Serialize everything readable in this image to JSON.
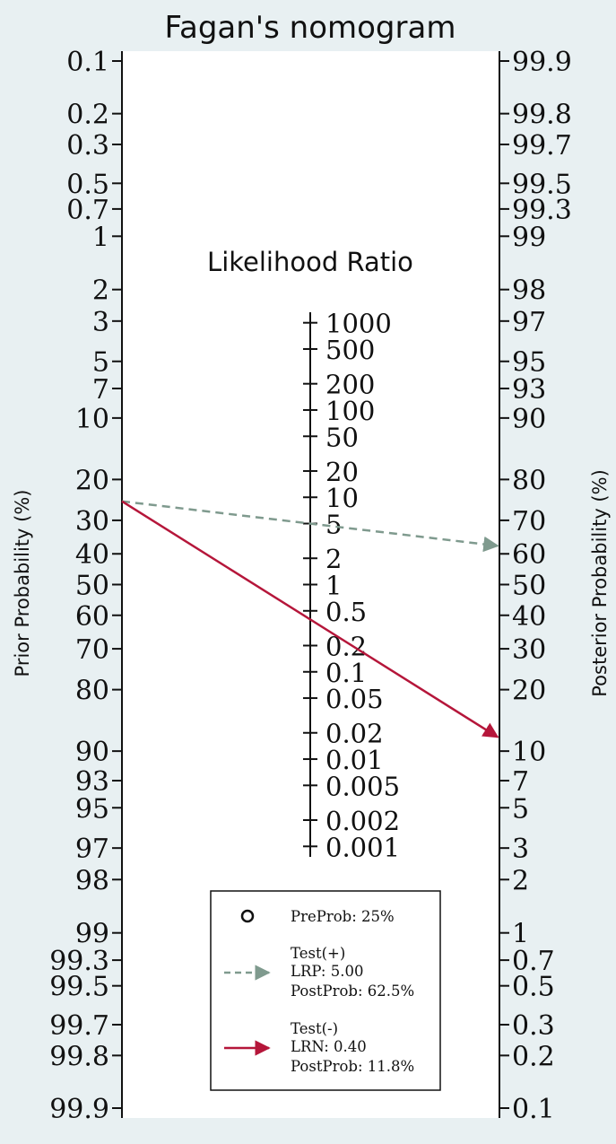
{
  "chart_data": {
    "type": "nomogram",
    "title": "Fagan's nomogram",
    "lr_title": "Likelihood Ratio",
    "left_axis": {
      "label": "Prior Probability (%)",
      "ticks": [
        "0.1",
        "0.2",
        "0.3",
        "0.5",
        "0.7",
        "1",
        "2",
        "3",
        "5",
        "7",
        "10",
        "20",
        "30",
        "40",
        "50",
        "60",
        "70",
        "80",
        "90",
        "93",
        "95",
        "97",
        "98",
        "99",
        "99.3",
        "99.5",
        "99.7",
        "99.8",
        "99.9"
      ]
    },
    "right_axis": {
      "label": "Posterior Probability (%)",
      "ticks": [
        "99.9",
        "99.8",
        "99.7",
        "99.5",
        "99.3",
        "99",
        "98",
        "97",
        "95",
        "93",
        "90",
        "80",
        "70",
        "60",
        "50",
        "40",
        "30",
        "20",
        "10",
        "7",
        "5",
        "3",
        "2",
        "1",
        "0.7",
        "0.5",
        "0.3",
        "0.2",
        "0.1"
      ]
    },
    "lr_axis": {
      "ticks": [
        "1000",
        "500",
        "200",
        "100",
        "50",
        "20",
        "10",
        "5",
        "2",
        "1",
        "0.5",
        "0.2",
        "0.1",
        "0.05",
        "0.02",
        "0.01",
        "0.005",
        "0.002",
        "0.001"
      ]
    },
    "pre_prob": 25,
    "lines": [
      {
        "name": "Test(+)",
        "lr_label": "LRP",
        "lr": "5.00",
        "post_prob_label": "62.5%",
        "post_prob": 62.5,
        "color": "#7f9a8e",
        "style": "dashed"
      },
      {
        "name": "Test(-)",
        "lr_label": "LRN",
        "lr": "0.40",
        "post_prob_label": "11.8%",
        "post_prob": 11.8,
        "color": "#b5163a",
        "style": "solid"
      }
    ],
    "legend": {
      "preprob": "PreProb: 25%",
      "pos_title": "Test(+)",
      "pos_lr": "LRP: 5.00",
      "pos_post": "PostProb: 62.5%",
      "neg_title": "Test(-)",
      "neg_lr": "LRN: 0.40",
      "neg_post": "PostProb: 11.8%"
    },
    "colors": {
      "plot_background": "#ffffff",
      "outer_background": "#e8f0f2"
    }
  }
}
